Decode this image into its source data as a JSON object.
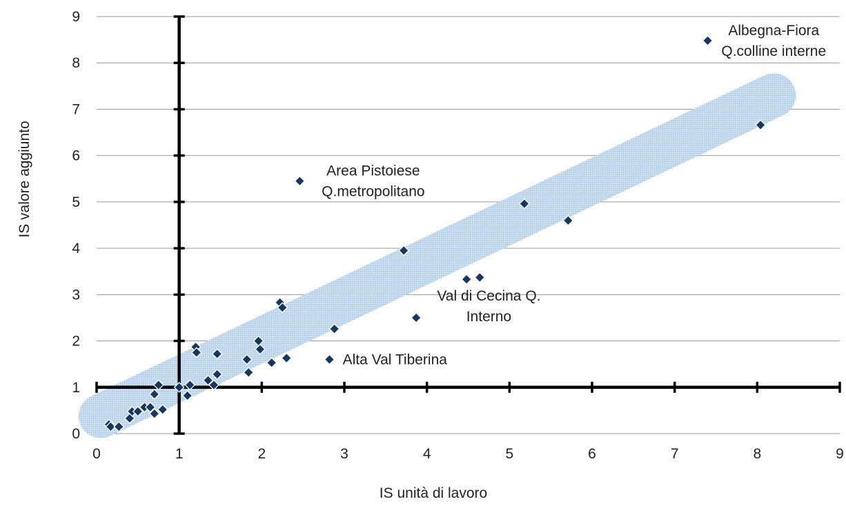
{
  "chart_data": {
    "type": "scatter",
    "title": "",
    "xlabel": "IS unità di lavoro",
    "ylabel": "IS  valore aggiunto",
    "xlim": [
      0,
      9
    ],
    "ylim": [
      0,
      9
    ],
    "xticks": [
      "0",
      "1",
      "2",
      "3",
      "4",
      "5",
      "6",
      "7",
      "8",
      "9"
    ],
    "yticks": [
      "0",
      "1",
      "2",
      "3",
      "4",
      "5",
      "6",
      "7",
      "8",
      "9"
    ],
    "grid": "horizontal",
    "reference_lines": {
      "x": 1,
      "y": 1
    },
    "trend_band": {
      "from": [
        0.05,
        0.38
      ],
      "to": [
        8.2,
        7.3
      ],
      "color": "#b9d3ea"
    },
    "marker_color": "#17375e",
    "points": [
      {
        "x": 0.15,
        "y": 0.2
      },
      {
        "x": 0.17,
        "y": 0.15
      },
      {
        "x": 0.27,
        "y": 0.15
      },
      {
        "x": 0.4,
        "y": 0.33
      },
      {
        "x": 0.43,
        "y": 0.48
      },
      {
        "x": 0.5,
        "y": 0.48
      },
      {
        "x": 0.58,
        "y": 0.57
      },
      {
        "x": 0.65,
        "y": 0.57
      },
      {
        "x": 0.7,
        "y": 0.85
      },
      {
        "x": 0.7,
        "y": 0.43
      },
      {
        "x": 0.75,
        "y": 1.05
      },
      {
        "x": 0.8,
        "y": 0.52
      },
      {
        "x": 1.0,
        "y": 1.0
      },
      {
        "x": 1.1,
        "y": 0.82
      },
      {
        "x": 1.13,
        "y": 1.05
      },
      {
        "x": 1.2,
        "y": 1.87
      },
      {
        "x": 1.21,
        "y": 1.75
      },
      {
        "x": 1.35,
        "y": 1.15
      },
      {
        "x": 1.42,
        "y": 1.05
      },
      {
        "x": 1.46,
        "y": 1.28
      },
      {
        "x": 1.46,
        "y": 1.72
      },
      {
        "x": 1.82,
        "y": 1.6
      },
      {
        "x": 1.84,
        "y": 1.32
      },
      {
        "x": 1.96,
        "y": 2.0
      },
      {
        "x": 1.98,
        "y": 1.82
      },
      {
        "x": 2.12,
        "y": 1.53
      },
      {
        "x": 2.22,
        "y": 2.83
      },
      {
        "x": 2.25,
        "y": 2.72
      },
      {
        "x": 2.3,
        "y": 1.63
      },
      {
        "x": 2.46,
        "y": 5.45
      },
      {
        "x": 2.82,
        "y": 1.6
      },
      {
        "x": 2.88,
        "y": 2.26
      },
      {
        "x": 3.72,
        "y": 3.95
      },
      {
        "x": 3.87,
        "y": 2.5
      },
      {
        "x": 4.48,
        "y": 3.33
      },
      {
        "x": 4.64,
        "y": 3.37
      },
      {
        "x": 5.18,
        "y": 4.96
      },
      {
        "x": 5.71,
        "y": 4.6
      },
      {
        "x": 7.4,
        "y": 8.48
      },
      {
        "x": 8.04,
        "y": 6.66
      }
    ],
    "annotations": [
      {
        "lines": [
          "Albegna-Fiora",
          "Q.colline interne"
        ],
        "x": 8.2,
        "y": 8.48,
        "anchor": "middle"
      },
      {
        "lines": [
          "Area Pistoiese",
          "Q.metropolitano"
        ],
        "x": 3.35,
        "y": 5.45,
        "anchor": "middle"
      },
      {
        "lines": [
          "Val di Cecina Q.",
          "Interno"
        ],
        "x": 4.75,
        "y": 2.75,
        "anchor": "middle"
      },
      {
        "lines": [
          "Alta Val Tiberina"
        ],
        "x": 2.98,
        "y": 1.6,
        "anchor": "start"
      }
    ]
  }
}
